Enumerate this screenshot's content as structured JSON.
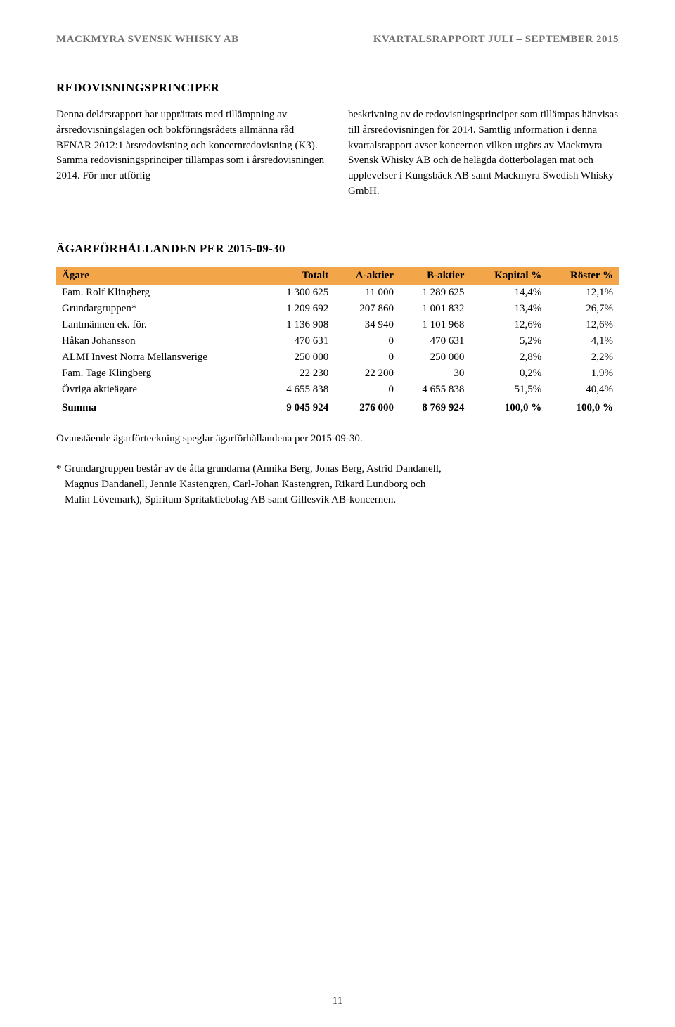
{
  "header": {
    "left": "MACKMYRA SVENSK WHISKY AB",
    "right": "KVARTALSRAPPORT JULI – SEPTEMBER 2015"
  },
  "section1": {
    "title": "REDOVISNINGSPRINCIPER",
    "left_para": "Denna delårsrapport har upprättats med tillämpning av årsredovisningslagen och bokföringsrådets allmänna råd BFNAR 2012:1 årsredovisning och koncernredovisning (K3). Samma redovisningsprinciper tillämpas som i årsredovisningen 2014. För mer utförlig",
    "right_para": "beskrivning av de redovisningsprinciper som tillämpas hänvisas till årsredovisningen för 2014. Samtlig information i denna kvartalsrapport avser koncernen vilken utgörs av Mackmyra Svensk Whisky AB och de helägda dotterbolagen mat och upplevelser i Kungsbäck AB samt Mackmyra Swedish Whisky GmbH."
  },
  "owners": {
    "title": "ÄGARFÖRHÅLLANDEN PER 2015-09-30",
    "columns": [
      "Ägare",
      "Totalt",
      "A-aktier",
      "B-aktier",
      "Kapital %",
      "Röster %"
    ],
    "rows": [
      {
        "name": "Fam. Rolf Klingberg",
        "totalt": "1 300 625",
        "a": "11 000",
        "b": "1 289 625",
        "kapital": "14,4%",
        "roster": "12,1%"
      },
      {
        "name": "Grundargruppen*",
        "totalt": "1 209 692",
        "a": "207 860",
        "b": "1 001 832",
        "kapital": "13,4%",
        "roster": "26,7%"
      },
      {
        "name": "Lantmännen ek. för.",
        "totalt": "1 136 908",
        "a": "34 940",
        "b": "1 101 968",
        "kapital": "12,6%",
        "roster": "12,6%"
      },
      {
        "name": "Håkan Johansson",
        "totalt": "470 631",
        "a": "0",
        "b": "470 631",
        "kapital": "5,2%",
        "roster": "4,1%"
      },
      {
        "name": "ALMI Invest Norra Mellansverige",
        "totalt": "250 000",
        "a": "0",
        "b": "250 000",
        "kapital": "2,8%",
        "roster": "2,2%"
      },
      {
        "name": "Fam. Tage Klingberg",
        "totalt": "22 230",
        "a": "22 200",
        "b": "30",
        "kapital": "0,2%",
        "roster": "1,9%"
      },
      {
        "name": "Övriga aktieägare",
        "totalt": "4 655 838",
        "a": "0",
        "b": "4 655 838",
        "kapital": "51,5%",
        "roster": "40,4%"
      }
    ],
    "summa": {
      "name": "Summa",
      "totalt": "9 045 924",
      "a": "276 000",
      "b": "8 769 924",
      "kapital": "100,0 %",
      "roster": "100,0 %"
    },
    "header_bg": "#f3a54a",
    "header_color": "#000000"
  },
  "note": "Ovanstående ägarförteckning speglar ägarförhållandena per 2015-09-30.",
  "footnote_line1": "* Grundargruppen består av de åtta grundarna (Annika Berg, Jonas Berg, Astrid Dandanell,",
  "footnote_line2": "Magnus Dandanell, Jennie Kastengren, Carl-Johan Kastengren, Rikard Lundborg och",
  "footnote_line3": "Malin Lövemark), Spiritum Spritaktiebolag AB samt Gillesvik AB-koncernen.",
  "page_number": "11"
}
